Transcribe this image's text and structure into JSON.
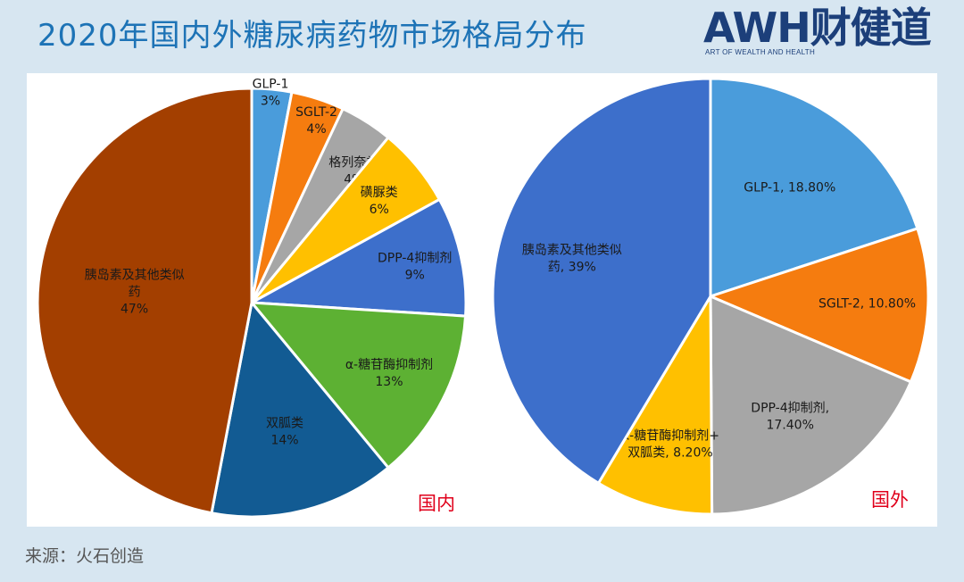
{
  "header": {
    "title": "2020年国内外糖尿病药物市场格局分布"
  },
  "logo": {
    "main": "AWH财健道",
    "sub": "ART OF WEALTH AND HEALTH"
  },
  "footer": {
    "source": "来源：火石创造"
  },
  "chart_data": [
    {
      "type": "pie",
      "panel_label": "国内",
      "slices": [
        {
          "label_lines": [
            "GLP-1",
            "3%"
          ],
          "name": "GLP-1",
          "value": 3,
          "color": "#4a9cdb"
        },
        {
          "label_lines": [
            "SGLT-2",
            "4%"
          ],
          "name": "SGLT-2",
          "value": 4,
          "color": "#f57c0f"
        },
        {
          "label_lines": [
            "格列奈类",
            "4%"
          ],
          "name": "格列奈类",
          "value": 4,
          "color": "#a6a6a6"
        },
        {
          "label_lines": [
            "磺脲类",
            "6%"
          ],
          "name": "磺脲类",
          "value": 6,
          "color": "#ffc000"
        },
        {
          "label_lines": [
            "DPP-4抑制剂",
            "9%"
          ],
          "name": "DPP-4抑制剂",
          "value": 9,
          "color": "#3d6fcb"
        },
        {
          "label_lines": [
            "α-糖苷酶抑制剂",
            "13%"
          ],
          "name": "α-糖苷酶抑制剂",
          "value": 13,
          "color": "#5db133"
        },
        {
          "label_lines": [
            "双胍类",
            "14%"
          ],
          "name": "双胍类",
          "value": 14,
          "color": "#125b93"
        },
        {
          "label_lines": [
            "胰岛素及其他类似",
            "药",
            "47%"
          ],
          "name": "胰岛素及其他类似药",
          "value": 47,
          "color": "#a33f00"
        }
      ]
    },
    {
      "type": "pie",
      "panel_label": "国外",
      "slices": [
        {
          "label_lines": [
            "GLP-1, 18.80%"
          ],
          "name": "GLP-1",
          "value": 18.8,
          "color": "#4a9cdb"
        },
        {
          "label_lines": [
            "SGLT-2, 10.80%"
          ],
          "name": "SGLT-2",
          "value": 10.8,
          "color": "#f57c0f"
        },
        {
          "label_lines": [
            "DPP-4抑制剂,",
            "17.40%"
          ],
          "name": "DPP-4抑制剂",
          "value": 17.4,
          "color": "#a6a6a6"
        },
        {
          "label_lines": [
            "α-糖苷酶抑制剂+",
            "双胍类, 8.20%"
          ],
          "name": "α-糖苷酶抑制剂+双胍类",
          "value": 8.2,
          "color": "#ffc000"
        },
        {
          "label_lines": [
            "胰岛素及其他类似",
            "药, 39%"
          ],
          "name": "胰岛素及其他类似药",
          "value": 39,
          "color": "#3d6fcb"
        }
      ]
    }
  ]
}
